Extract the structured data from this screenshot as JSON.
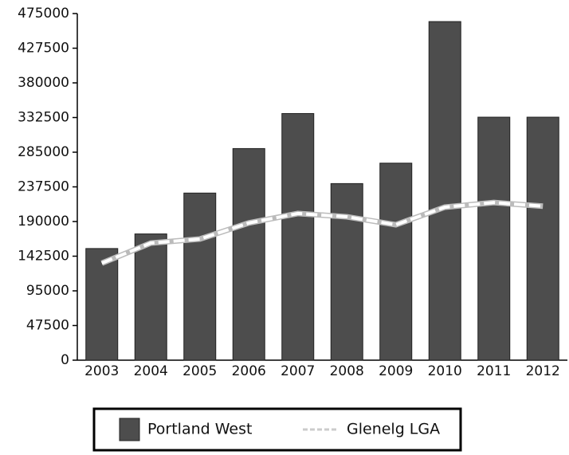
{
  "chart_data": {
    "type": "bar",
    "categories": [
      "2003",
      "2004",
      "2005",
      "2006",
      "2007",
      "2008",
      "2009",
      "2010",
      "2011",
      "2012"
    ],
    "series": [
      {
        "name": "Portland West",
        "type": "bar",
        "color": "#4d4d4d",
        "values": [
          153000,
          173000,
          229000,
          290000,
          338000,
          242000,
          270000,
          464000,
          333000,
          333000
        ]
      },
      {
        "name": "Glenelg LGA",
        "type": "line",
        "color": "#ffffff",
        "values": [
          133000,
          160500,
          166000,
          188000,
          201000,
          196500,
          185600,
          209700,
          216000,
          211000
        ]
      }
    ],
    "ylim": [
      0,
      475000
    ],
    "yticks": [
      0,
      47500,
      95000,
      142500,
      190000,
      237500,
      285000,
      332500,
      380000,
      427500,
      475000
    ],
    "legend": "bottom"
  }
}
